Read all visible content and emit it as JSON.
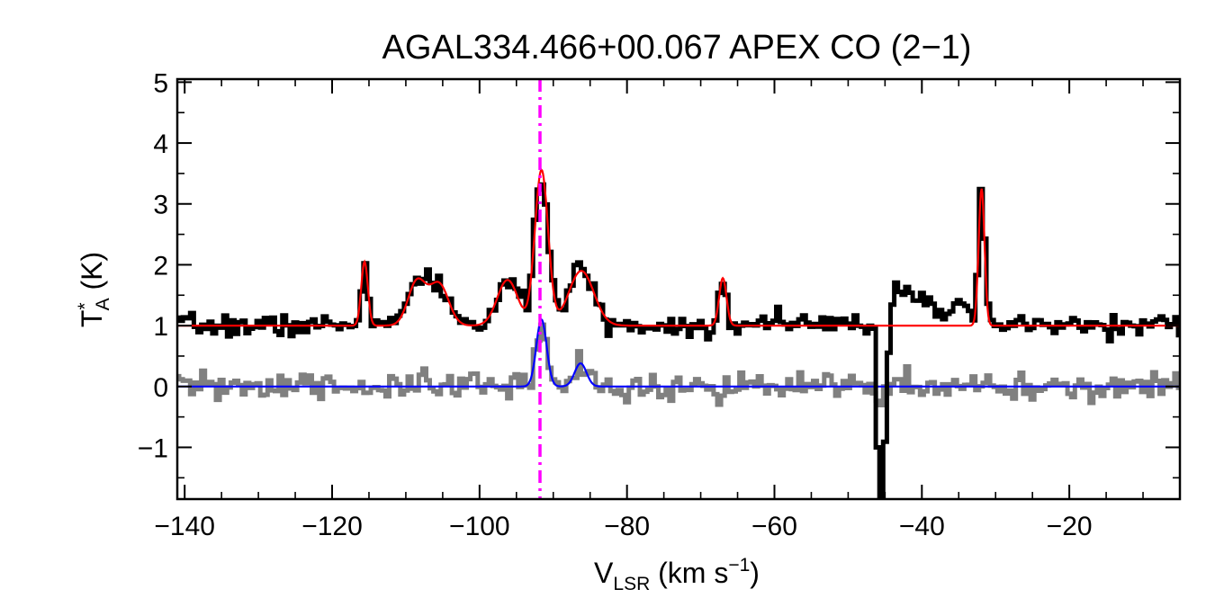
{
  "chart_data": {
    "type": "line",
    "title": "AGAL334.466+00.067  APEX CO (2−1)",
    "xlabel": {
      "main": "V",
      "sub": "LSR",
      "units": " (km s",
      "sup": "−1",
      "close": ")"
    },
    "ylabel": {
      "main": "T",
      "sup": "*",
      "sub": "A",
      "units": " (K)"
    },
    "xlim": [
      -141,
      -5
    ],
    "ylim": [
      -1.85,
      5.05
    ],
    "xticks": [
      -140,
      -120,
      -100,
      -80,
      -60,
      -40,
      -20
    ],
    "xtick_labels": [
      "−140",
      "−120",
      "−100",
      "−80",
      "−60",
      "−40",
      "−20"
    ],
    "yticks": [
      -1,
      0,
      1,
      2,
      3,
      4,
      5
    ],
    "ytick_labels": [
      "−1",
      "0",
      "1",
      "2",
      "3",
      "4",
      "5"
    ],
    "vline": {
      "x": -91.8,
      "color": "#ff00ff",
      "style": "dash-dot"
    },
    "series": [
      {
        "role": "observed-spectrum",
        "color": "#000000",
        "style": "histogram",
        "noise": 0.09,
        "offset": 1.0,
        "seed": 7,
        "features": [
          {
            "center": -115.6,
            "amp": 1.05,
            "sigma": 0.45
          },
          {
            "center": -108.5,
            "amp": 0.72,
            "sigma": 1.2
          },
          {
            "center": -105.5,
            "amp": 0.68,
            "sigma": 1.3
          },
          {
            "center": -96.2,
            "amp": 0.75,
            "sigma": 1.4
          },
          {
            "center": -91.6,
            "amp": 2.55,
            "sigma": 0.9
          },
          {
            "center": -86.2,
            "amp": 0.9,
            "sigma": 1.7
          },
          {
            "center": -67.0,
            "amp": 0.78,
            "sigma": 0.5
          },
          {
            "center": -60.0,
            "amp": 0.18,
            "sigma": 1.2
          },
          {
            "center": -46.6,
            "amp": 0.55,
            "sigma": 0.25
          },
          {
            "center": -45.5,
            "amp": -3.1,
            "sigma": 0.55
          },
          {
            "center": -43.0,
            "amp": 0.5,
            "sigma": 1.5
          },
          {
            "center": -39.5,
            "amp": 0.42,
            "sigma": 2.2
          },
          {
            "center": -35.0,
            "amp": 0.25,
            "sigma": 1.0
          },
          {
            "center": -31.9,
            "amp": 2.25,
            "sigma": 0.4
          }
        ]
      },
      {
        "role": "fit",
        "color": "#ff0000",
        "style": "smooth",
        "offset": 1.0,
        "features": [
          {
            "center": -115.6,
            "amp": 1.05,
            "sigma": 0.45
          },
          {
            "center": -108.5,
            "amp": 0.72,
            "sigma": 1.2
          },
          {
            "center": -105.5,
            "amp": 0.68,
            "sigma": 1.3
          },
          {
            "center": -96.2,
            "amp": 0.75,
            "sigma": 1.4
          },
          {
            "center": -91.6,
            "amp": 2.55,
            "sigma": 0.9
          },
          {
            "center": -86.2,
            "amp": 0.9,
            "sigma": 1.7
          },
          {
            "center": -67.0,
            "amp": 0.78,
            "sigma": 0.5
          },
          {
            "center": -31.9,
            "amp": 2.25,
            "sigma": 0.4
          }
        ]
      },
      {
        "role": "secondary-spectrum",
        "color": "#808080",
        "style": "histogram",
        "noise": 0.12,
        "offset": 0.0,
        "seed": 31,
        "features": [
          {
            "center": -91.6,
            "amp": 1.1,
            "sigma": 0.7
          },
          {
            "center": -86.3,
            "amp": 0.38,
            "sigma": 0.8
          },
          {
            "center": -45.6,
            "amp": -0.35,
            "sigma": 0.5
          }
        ]
      },
      {
        "role": "secondary-fit",
        "color": "#0000ff",
        "style": "smooth",
        "offset": 0.0,
        "features": [
          {
            "center": -91.6,
            "amp": 1.1,
            "sigma": 0.7
          },
          {
            "center": -86.3,
            "amp": 0.38,
            "sigma": 0.8
          }
        ]
      }
    ]
  }
}
